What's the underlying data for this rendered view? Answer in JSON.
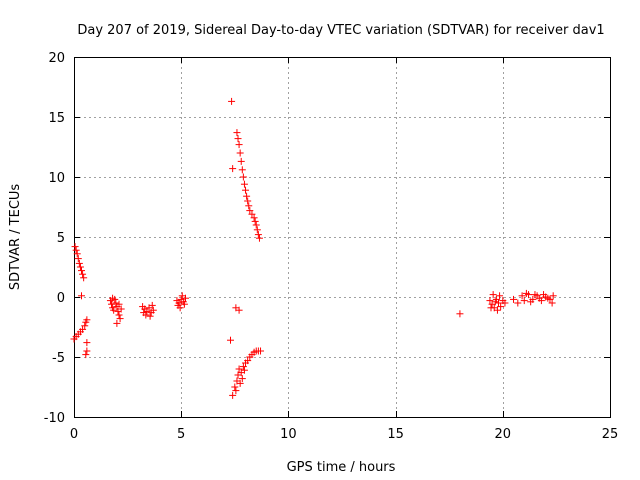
{
  "chart_data": {
    "type": "scatter",
    "title": "Day 207 of 2019, Sidereal Day-to-day VTEC variation (SDTVAR) for receiver dav1",
    "xlabel": "GPS time / hours",
    "ylabel": "SDTVAR / TECUs",
    "xlim": [
      0,
      25
    ],
    "ylim": [
      -10,
      20
    ],
    "xticks": [
      "0",
      "5",
      "10",
      "15",
      "20",
      "25"
    ],
    "yticks": [
      "-10",
      "-5",
      "0",
      "5",
      "10",
      "15",
      "20"
    ],
    "grid": true,
    "marker": "+",
    "color": "#ff0000",
    "series": [
      {
        "name": "SDTVAR",
        "points": [
          [
            0.05,
            4.2
          ],
          [
            0.1,
            3.9
          ],
          [
            0.15,
            3.6
          ],
          [
            0.2,
            3.2
          ],
          [
            0.25,
            2.8
          ],
          [
            0.3,
            2.5
          ],
          [
            0.35,
            2.2
          ],
          [
            0.4,
            1.9
          ],
          [
            0.45,
            1.6
          ],
          [
            0.35,
            0.1
          ],
          [
            0.0,
            -3.5
          ],
          [
            0.1,
            -3.3
          ],
          [
            0.2,
            -3.1
          ],
          [
            0.3,
            -2.9
          ],
          [
            0.4,
            -2.7
          ],
          [
            0.5,
            -2.4
          ],
          [
            0.55,
            -2.1
          ],
          [
            0.6,
            -1.9
          ],
          [
            0.6,
            -3.8
          ],
          [
            0.6,
            -4.5
          ],
          [
            0.55,
            -4.8
          ],
          [
            1.7,
            -0.3
          ],
          [
            1.75,
            -0.6
          ],
          [
            1.8,
            -0.9
          ],
          [
            1.85,
            -1.1
          ],
          [
            1.9,
            -0.2
          ],
          [
            1.95,
            -0.5
          ],
          [
            2.0,
            -0.8
          ],
          [
            2.05,
            -1.2
          ],
          [
            2.1,
            -1.5
          ],
          [
            2.15,
            -1.8
          ],
          [
            2.2,
            -1.0
          ],
          [
            2.0,
            -2.2
          ],
          [
            1.8,
            -0.1
          ],
          [
            2.1,
            -0.6
          ],
          [
            3.2,
            -0.8
          ],
          [
            3.3,
            -1.0
          ],
          [
            3.4,
            -1.2
          ],
          [
            3.5,
            -0.9
          ],
          [
            3.6,
            -1.3
          ],
          [
            3.7,
            -1.1
          ],
          [
            3.35,
            -1.5
          ],
          [
            3.55,
            -1.6
          ],
          [
            3.25,
            -1.3
          ],
          [
            3.65,
            -0.7
          ],
          [
            4.8,
            -0.3
          ],
          [
            4.9,
            -0.5
          ],
          [
            5.0,
            -0.2
          ],
          [
            5.1,
            -0.4
          ],
          [
            5.2,
            -0.1
          ],
          [
            4.85,
            -0.7
          ],
          [
            5.05,
            0.1
          ],
          [
            5.15,
            -0.6
          ],
          [
            4.95,
            -0.9
          ],
          [
            7.35,
            16.3
          ],
          [
            7.6,
            13.7
          ],
          [
            7.65,
            13.2
          ],
          [
            7.7,
            12.7
          ],
          [
            7.75,
            12.0
          ],
          [
            7.8,
            11.3
          ],
          [
            7.85,
            10.6
          ],
          [
            7.9,
            10.0
          ],
          [
            7.95,
            9.4
          ],
          [
            8.0,
            8.9
          ],
          [
            8.05,
            8.4
          ],
          [
            8.1,
            8.0
          ],
          [
            8.15,
            7.6
          ],
          [
            8.2,
            7.2
          ],
          [
            8.3,
            6.9
          ],
          [
            8.4,
            6.6
          ],
          [
            8.45,
            6.3
          ],
          [
            8.5,
            6.0
          ],
          [
            8.55,
            5.6
          ],
          [
            8.6,
            5.2
          ],
          [
            8.65,
            4.9
          ],
          [
            7.4,
            10.7
          ],
          [
            7.55,
            -0.9
          ],
          [
            7.7,
            -1.1
          ],
          [
            7.3,
            -3.6
          ],
          [
            7.4,
            -8.2
          ],
          [
            7.5,
            -7.5
          ],
          [
            7.6,
            -7.0
          ],
          [
            7.65,
            -6.5
          ],
          [
            7.7,
            -6.0
          ],
          [
            7.8,
            -6.3
          ],
          [
            7.9,
            -5.8
          ],
          [
            8.0,
            -5.5
          ],
          [
            8.1,
            -5.3
          ],
          [
            8.2,
            -5.0
          ],
          [
            8.3,
            -4.8
          ],
          [
            8.4,
            -4.6
          ],
          [
            8.5,
            -4.5
          ],
          [
            8.6,
            -4.5
          ],
          [
            8.7,
            -4.5
          ],
          [
            7.55,
            -7.8
          ],
          [
            7.75,
            -7.2
          ],
          [
            7.85,
            -6.8
          ],
          [
            7.95,
            -6.1
          ],
          [
            18.0,
            -1.4
          ],
          [
            19.4,
            -0.3
          ],
          [
            19.5,
            -0.6
          ],
          [
            19.6,
            -0.9
          ],
          [
            19.7,
            -0.2
          ],
          [
            19.8,
            -0.5
          ],
          [
            19.9,
            -0.8
          ],
          [
            20.0,
            -0.3
          ],
          [
            19.55,
            0.2
          ],
          [
            19.75,
            -1.1
          ],
          [
            19.85,
            0.1
          ],
          [
            19.45,
            -0.9
          ],
          [
            19.65,
            -0.4
          ],
          [
            20.1,
            -0.5
          ],
          [
            20.5,
            -0.2
          ],
          [
            20.7,
            -0.5
          ],
          [
            20.9,
            0.1
          ],
          [
            21.0,
            -0.3
          ],
          [
            21.2,
            0.2
          ],
          [
            21.4,
            -0.2
          ],
          [
            21.6,
            0.1
          ],
          [
            21.8,
            -0.3
          ],
          [
            22.0,
            0.0
          ],
          [
            22.2,
            -0.2
          ],
          [
            22.3,
            -0.5
          ],
          [
            21.1,
            0.3
          ],
          [
            21.3,
            -0.4
          ],
          [
            21.5,
            0.2
          ],
          [
            21.7,
            -0.1
          ],
          [
            21.9,
            0.2
          ],
          [
            22.1,
            -0.1
          ],
          [
            22.35,
            0.1
          ]
        ]
      }
    ]
  }
}
